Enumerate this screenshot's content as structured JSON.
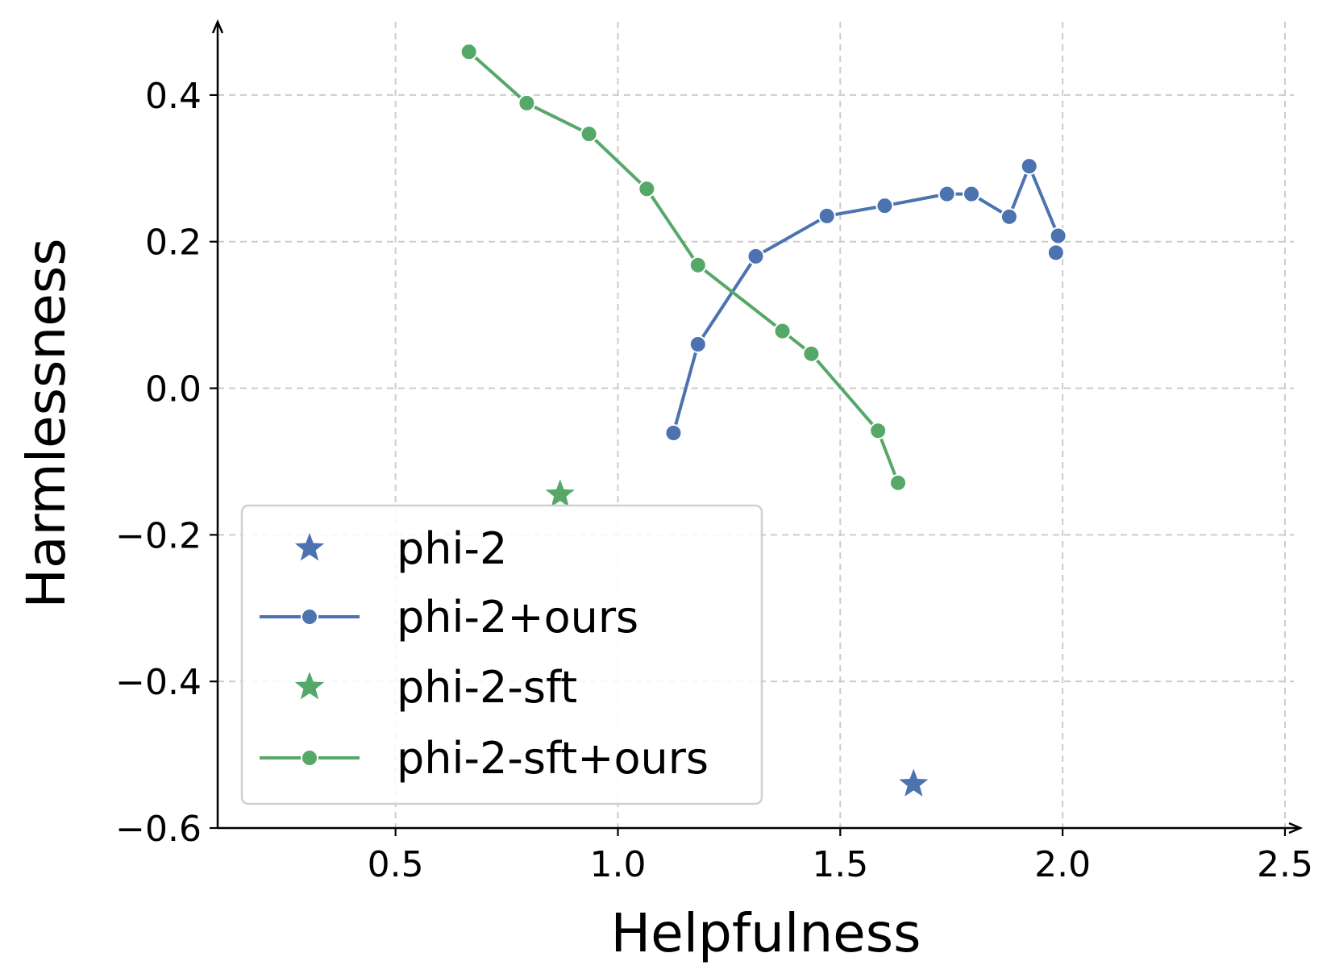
{
  "chart_data": {
    "type": "line",
    "xlabel": "Helpfulness",
    "ylabel": "Harmlessness",
    "xlim": [
      0.1,
      2.52
    ],
    "ylim": [
      -0.6,
      0.5
    ],
    "xticks": [
      0.5,
      1.0,
      1.5,
      2.0,
      2.5
    ],
    "xtick_labels": [
      "0.5",
      "1.0",
      "1.5",
      "2.0",
      "2.5"
    ],
    "yticks": [
      -0.6,
      -0.4,
      -0.2,
      0.0,
      0.2,
      0.4
    ],
    "ytick_labels": [
      "−0.6",
      "−0.4",
      "−0.2",
      "0.0",
      "0.2",
      "0.4"
    ],
    "grid": true,
    "legend_position": "lower-left",
    "series": [
      {
        "name": "phi-2",
        "kind": "star",
        "color": "#4c72b0",
        "points": [
          [
            1.665,
            -0.54
          ]
        ]
      },
      {
        "name": "phi-2+ours",
        "kind": "line",
        "color": "#4c72b0",
        "points": [
          [
            1.125,
            -0.061
          ],
          [
            1.18,
            0.06
          ],
          [
            1.31,
            0.18
          ],
          [
            1.47,
            0.235
          ],
          [
            1.6,
            0.249
          ],
          [
            1.74,
            0.265
          ],
          [
            1.795,
            0.265
          ],
          [
            1.88,
            0.234
          ],
          [
            1.925,
            0.303
          ],
          [
            1.99,
            0.208
          ],
          [
            1.985,
            0.185
          ]
        ]
      },
      {
        "name": "phi-2-sft",
        "kind": "star",
        "color": "#55a868",
        "points": [
          [
            0.87,
            -0.145
          ]
        ]
      },
      {
        "name": "phi-2-sft+ours",
        "kind": "line",
        "color": "#55a868",
        "points": [
          [
            0.665,
            0.459
          ],
          [
            0.795,
            0.389
          ],
          [
            0.935,
            0.347
          ],
          [
            1.065,
            0.272
          ],
          [
            1.18,
            0.168
          ],
          [
            1.37,
            0.078
          ],
          [
            1.435,
            0.047
          ],
          [
            1.585,
            -0.058
          ],
          [
            1.63,
            -0.129
          ]
        ]
      }
    ]
  }
}
